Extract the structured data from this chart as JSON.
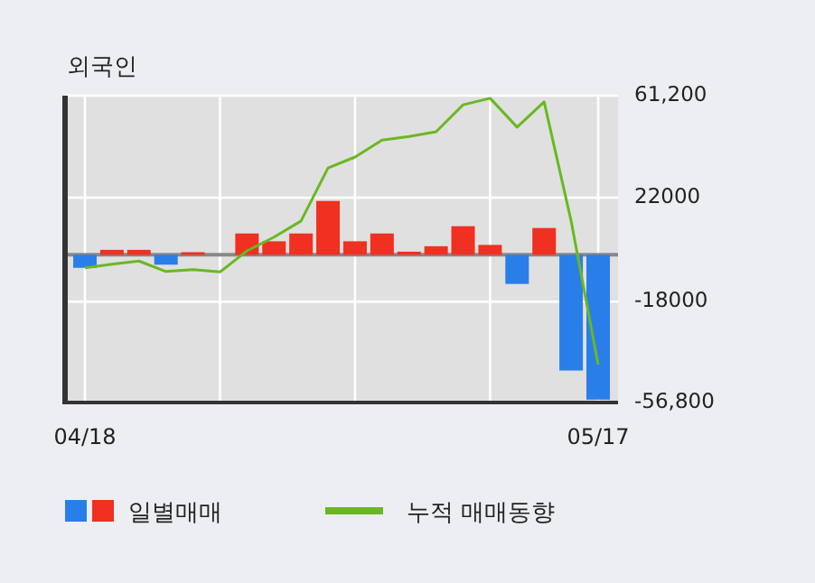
{
  "chart_data": {
    "type": "bar",
    "title": "외국인",
    "categories": [
      "04/18",
      null,
      null,
      null,
      null,
      null,
      null,
      null,
      null,
      null,
      null,
      null,
      null,
      null,
      null,
      null,
      null,
      null,
      null,
      "05/17"
    ],
    "series": [
      {
        "name": "일별매매",
        "colors": [
          "#2a7ee8",
          "#f03020",
          "#f03020",
          "#2a7ee8",
          "#f03020",
          "#f03020",
          "#f03020",
          "#f03020",
          "#f03020",
          "#f03020",
          "#f03020",
          "#f03020",
          "#f03020",
          "#f03020",
          "#f03020",
          "#f03020",
          "#2a7ee8",
          "#f03020",
          "#2a7ee8",
          "#2a7ee8"
        ],
        "values": [
          -5000,
          1900,
          1900,
          -3800,
          1000,
          0,
          8200,
          5200,
          8200,
          20700,
          5200,
          8200,
          1200,
          3300,
          11000,
          3800,
          -11200,
          10300,
          -44500,
          -55700
        ]
      },
      {
        "name": "누적 매매동향",
        "type": "line",
        "color": "#6ab820",
        "values": [
          -5000,
          -3600,
          -2400,
          -6400,
          -5700,
          -6600,
          1500,
          6800,
          13000,
          33400,
          37600,
          44100,
          45500,
          47300,
          57700,
          60200,
          49100,
          58800,
          13000,
          -42200
        ]
      }
    ],
    "ylim": [
      -56800,
      61200
    ],
    "yticks": [
      {
        "value": 61200,
        "label": "61,200"
      },
      22000,
      -18000,
      {
        "value": -56800,
        "label": "-56,800"
      }
    ],
    "grid": true,
    "legend": "bottom left"
  }
}
